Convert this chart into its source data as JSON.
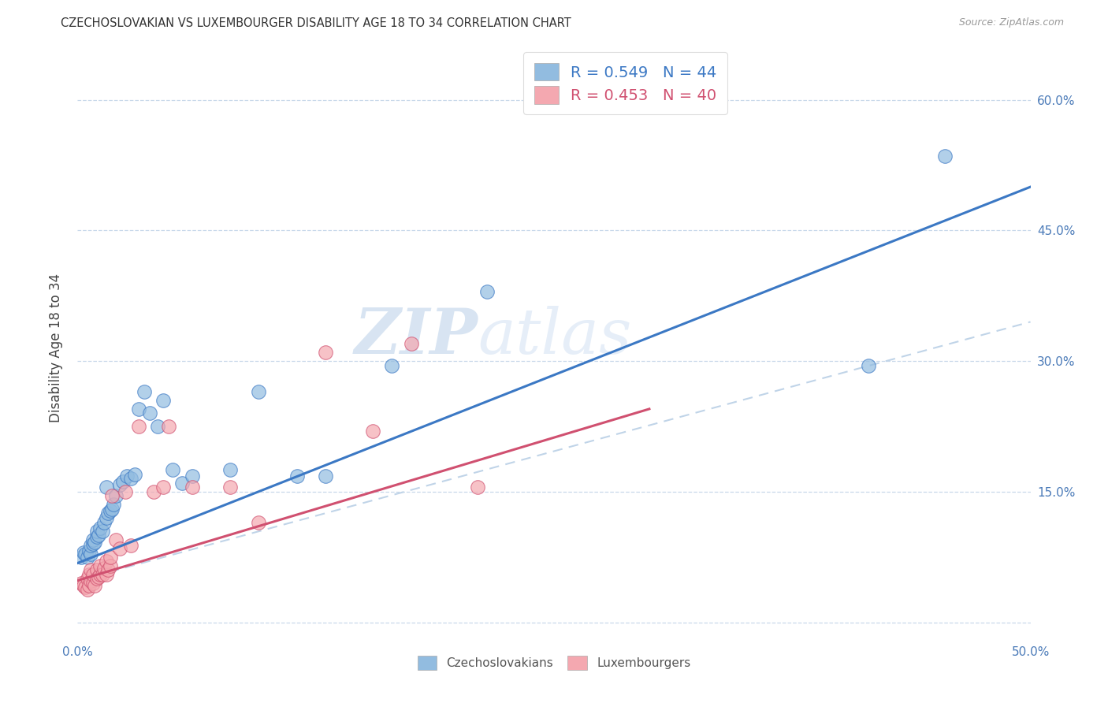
{
  "title": "CZECHOSLOVAKIAN VS LUXEMBOURGER DISABILITY AGE 18 TO 34 CORRELATION CHART",
  "source": "Source: ZipAtlas.com",
  "ylabel": "Disability Age 18 to 34",
  "xlim": [
    0.0,
    0.5
  ],
  "ylim": [
    -0.02,
    0.65
  ],
  "plot_ylim": [
    0.0,
    0.65
  ],
  "xticks": [
    0.0,
    0.05,
    0.1,
    0.15,
    0.2,
    0.25,
    0.3,
    0.35,
    0.4,
    0.45,
    0.5
  ],
  "xtick_labels": [
    "0.0%",
    "",
    "",
    "",
    "",
    "",
    "",
    "",
    "",
    "",
    "50.0%"
  ],
  "yticks": [
    0.0,
    0.15,
    0.3,
    0.45,
    0.6
  ],
  "ytick_labels": [
    "",
    "15.0%",
    "30.0%",
    "45.0%",
    "60.0%"
  ],
  "legend_r1": "R = 0.549   N = 44",
  "legend_r2": "R = 0.453   N = 40",
  "legend_label1": "Czechoslovakians",
  "legend_label2": "Luxembourgers",
  "blue_color": "#92bce0",
  "pink_color": "#f4a8b0",
  "blue_line_color": "#3b78c4",
  "pink_line_color": "#d05070",
  "dashed_line_color": "#c0d4e8",
  "watermark_color": "#d8e8f4",
  "blue_scatter_x": [
    0.002,
    0.003,
    0.004,
    0.005,
    0.006,
    0.007,
    0.007,
    0.008,
    0.008,
    0.009,
    0.01,
    0.01,
    0.011,
    0.012,
    0.013,
    0.014,
    0.015,
    0.015,
    0.016,
    0.017,
    0.018,
    0.019,
    0.02,
    0.022,
    0.024,
    0.026,
    0.028,
    0.03,
    0.032,
    0.035,
    0.038,
    0.042,
    0.045,
    0.05,
    0.055,
    0.06,
    0.08,
    0.095,
    0.115,
    0.13,
    0.165,
    0.215,
    0.415,
    0.455
  ],
  "blue_scatter_y": [
    0.075,
    0.08,
    0.078,
    0.075,
    0.082,
    0.078,
    0.088,
    0.09,
    0.095,
    0.092,
    0.098,
    0.105,
    0.1,
    0.108,
    0.105,
    0.115,
    0.155,
    0.12,
    0.125,
    0.128,
    0.13,
    0.135,
    0.145,
    0.158,
    0.162,
    0.168,
    0.165,
    0.17,
    0.245,
    0.265,
    0.24,
    0.225,
    0.255,
    0.175,
    0.16,
    0.168,
    0.175,
    0.265,
    0.168,
    0.168,
    0.295,
    0.38,
    0.295,
    0.535
  ],
  "pink_scatter_x": [
    0.002,
    0.003,
    0.004,
    0.005,
    0.005,
    0.006,
    0.006,
    0.007,
    0.007,
    0.008,
    0.008,
    0.009,
    0.01,
    0.01,
    0.011,
    0.012,
    0.012,
    0.013,
    0.014,
    0.015,
    0.015,
    0.016,
    0.017,
    0.017,
    0.018,
    0.02,
    0.022,
    0.025,
    0.028,
    0.032,
    0.04,
    0.045,
    0.048,
    0.06,
    0.08,
    0.095,
    0.13,
    0.155,
    0.175,
    0.21
  ],
  "pink_scatter_y": [
    0.045,
    0.042,
    0.04,
    0.038,
    0.05,
    0.042,
    0.055,
    0.048,
    0.06,
    0.045,
    0.055,
    0.042,
    0.05,
    0.06,
    0.052,
    0.055,
    0.065,
    0.055,
    0.062,
    0.055,
    0.07,
    0.06,
    0.065,
    0.075,
    0.145,
    0.095,
    0.085,
    0.15,
    0.088,
    0.225,
    0.15,
    0.155,
    0.225,
    0.155,
    0.155,
    0.115,
    0.31,
    0.22,
    0.32,
    0.155
  ],
  "blue_line_x": [
    0.0,
    0.5
  ],
  "blue_line_y": [
    0.068,
    0.5
  ],
  "pink_line_x": [
    0.0,
    0.3
  ],
  "pink_line_y": [
    0.048,
    0.245
  ],
  "dash_line_x": [
    0.0,
    0.5
  ],
  "dash_line_y": [
    0.048,
    0.345
  ]
}
